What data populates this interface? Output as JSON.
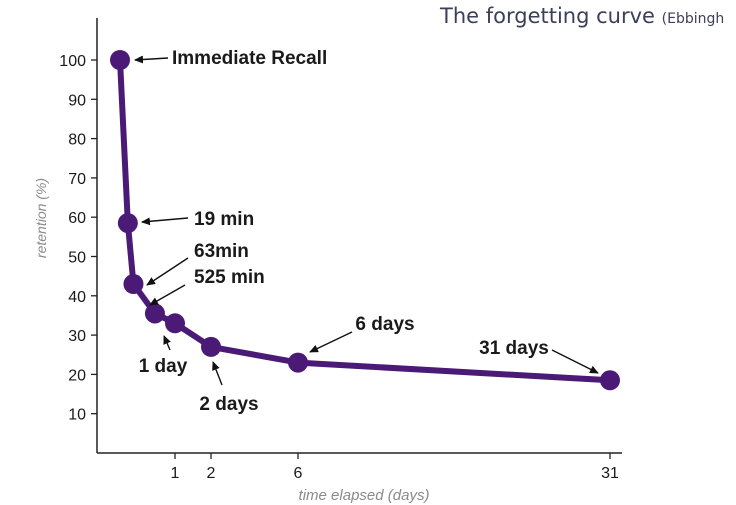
{
  "title": {
    "main": "The forgetting curve",
    "suffix": "(Ebbingh"
  },
  "chart_data": {
    "type": "line",
    "x": [
      0,
      0.0132,
      0.0438,
      0.365,
      1,
      2,
      6,
      31
    ],
    "values": [
      100,
      58.5,
      43,
      35.5,
      33,
      27,
      23,
      18.5
    ],
    "xlabel": "time elapsed (days)",
    "ylabel": "retention (%)",
    "y_ticks": [
      10,
      20,
      30,
      40,
      50,
      60,
      70,
      80,
      90,
      100
    ],
    "x_ticks": [
      1,
      2,
      6,
      31
    ],
    "ylim": [
      0,
      100
    ],
    "xlim": [
      0,
      31
    ],
    "grid": false,
    "series_color": "#4b1a76",
    "annotations": [
      {
        "text": "Immediate Recall",
        "point": 0
      },
      {
        "text": "19 min",
        "point": 1
      },
      {
        "text": "63min",
        "point": 2
      },
      {
        "text": "525 min",
        "point": 3
      },
      {
        "text": "1 day",
        "point": 4
      },
      {
        "text": "2 days",
        "point": 5
      },
      {
        "text": "6 days",
        "point": 6
      },
      {
        "text": "31 days",
        "point": 7
      }
    ]
  }
}
